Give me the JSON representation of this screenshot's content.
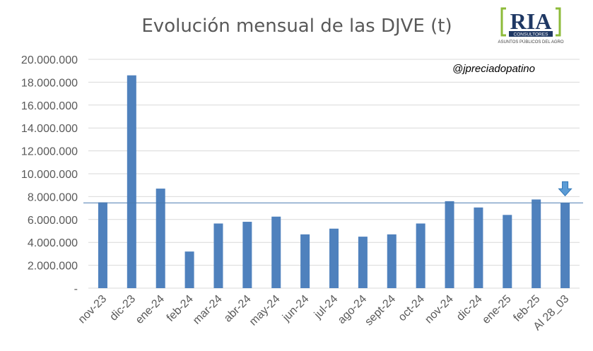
{
  "chart_data": {
    "type": "bar",
    "title": "Evolución mensual de las DJVE (t)",
    "xlabel": "",
    "ylabel": "",
    "categories": [
      "nov-23",
      "dic-23",
      "ene-24",
      "feb-24",
      "mar-24",
      "abr-24",
      "may-24",
      "jun-24",
      "jul-24",
      "ago-24",
      "sept-24",
      "oct-24",
      "nov-24",
      "dic-24",
      "ene-25",
      "feb-25",
      "Al 28_03"
    ],
    "values": [
      7500000,
      18600000,
      8700000,
      3200000,
      5650000,
      5800000,
      6250000,
      4700000,
      5200000,
      4500000,
      4700000,
      5650000,
      7600000,
      7050000,
      6400000,
      7750000,
      7450000
    ],
    "ylim": [
      0,
      20000000
    ],
    "yticks": [
      0,
      2000000,
      4000000,
      6000000,
      8000000,
      10000000,
      12000000,
      14000000,
      16000000,
      18000000,
      20000000
    ],
    "ytick_labels": [
      "-",
      "2.000.000",
      "4.000.000",
      "6.000.000",
      "8.000.000",
      "10.000.000",
      "12.000.000",
      "14.000.000",
      "16.000.000",
      "18.000.000",
      "20.000.000"
    ],
    "reference_line": 7450000,
    "marker_category": "Al 28_03",
    "grid": true,
    "legend": "none",
    "bar_color": "#4f81bd",
    "line_color": "#4a7ab0",
    "grid_color": "#d9d9d9"
  },
  "annotation": "@jpreciadopatino",
  "logo": {
    "main": "RIA",
    "band": "CONSULTORES",
    "sub": "ASUNTOS PÚBLICOS DEL AGRO",
    "colors": {
      "text": "#1f3864",
      "bracket": "#8dbb3a",
      "band": "#1f3864"
    }
  }
}
